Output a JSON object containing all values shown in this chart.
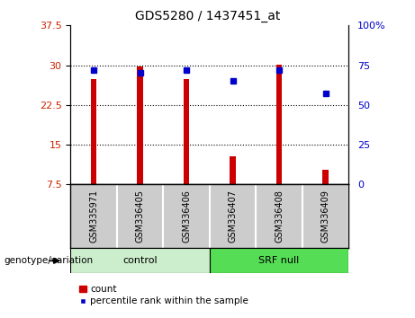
{
  "title": "GDS5280 / 1437451_at",
  "categories": [
    "GSM335971",
    "GSM336405",
    "GSM336406",
    "GSM336407",
    "GSM336408",
    "GSM336409"
  ],
  "red_values": [
    27.4,
    29.7,
    27.4,
    12.8,
    30.1,
    10.2
  ],
  "blue_values": [
    72,
    70,
    72,
    65,
    72,
    57
  ],
  "left_ylim": [
    7.5,
    37.5
  ],
  "right_ylim": [
    0,
    100
  ],
  "left_yticks": [
    7.5,
    15,
    22.5,
    30,
    37.5
  ],
  "right_yticks": [
    0,
    25,
    50,
    75,
    100
  ],
  "right_yticklabels": [
    "0",
    "25",
    "50",
    "75",
    "100%"
  ],
  "left_yticklabels": [
    "7.5",
    "15",
    "22.5",
    "30",
    "37.5"
  ],
  "bar_color": "#cc0000",
  "dot_color": "#0000cc",
  "tick_label_color_left": "#cc2200",
  "tick_label_color_right": "#0000cc",
  "control_color": "#cceecc",
  "srfnull_color": "#55dd55",
  "sample_box_color": "#cccccc",
  "bar_width": 0.12,
  "legend_count_label": "count",
  "legend_pct_label": "percentile rank within the sample",
  "genotype_label": "genotype/variation",
  "grid_ticks": [
    15,
    22.5,
    30
  ]
}
